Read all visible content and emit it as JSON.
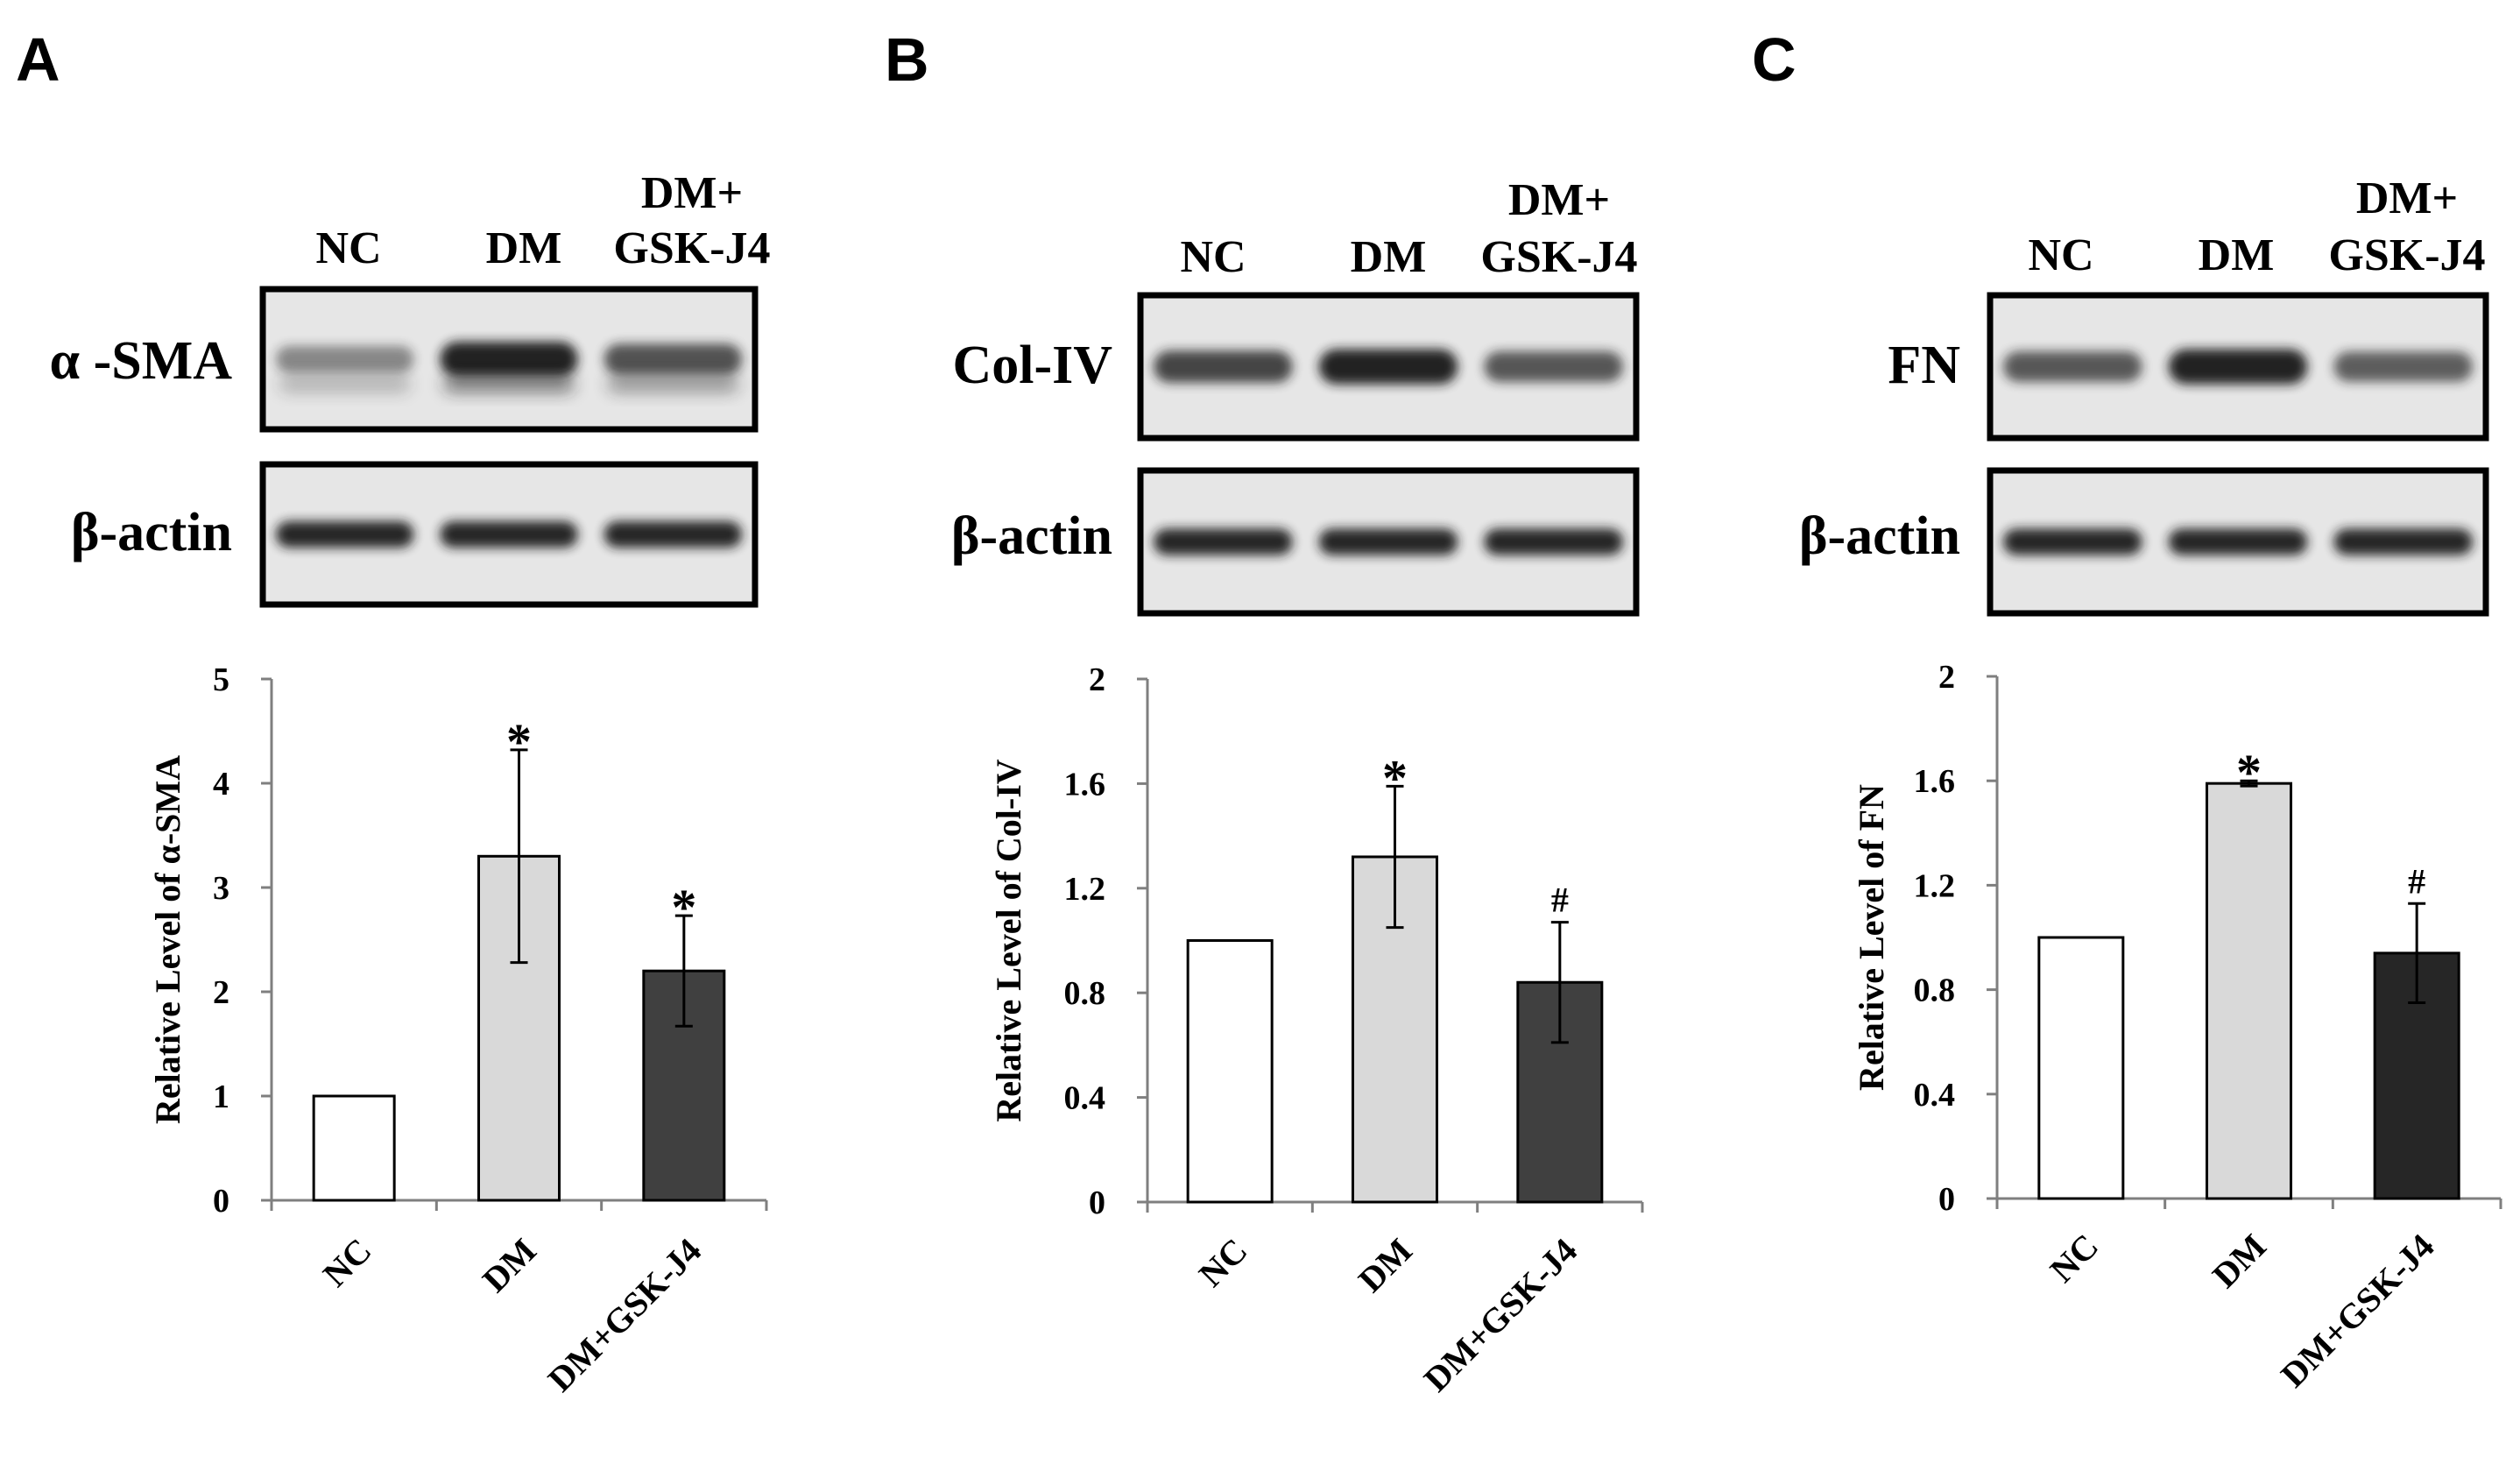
{
  "colors": {
    "nc": "#ffffff",
    "dm": "#d9d9d9",
    "dm_gsk": "#404040",
    "dm_gsk_c": "#262626",
    "blot_bg": "#e6e6e6",
    "band": "#1e1e1e"
  },
  "chart_data": [
    {
      "panel": "A",
      "type": "bar",
      "blot_lanes": [
        "NC",
        "DM",
        "DM+\nGSK-J4"
      ],
      "blot_rows": [
        "α -SMA",
        "β-actin"
      ],
      "categories": [
        "NC",
        "DM",
        "DM+GSK-J4"
      ],
      "values": [
        1.0,
        3.3,
        2.2
      ],
      "errors": [
        0,
        1.02,
        0.53
      ],
      "annotations": [
        "",
        "*",
        "*"
      ],
      "ylabel": "Relative Level of α-SMA",
      "ylim": [
        0,
        5
      ],
      "yticks": [
        "0",
        "1",
        "2",
        "3",
        "4",
        "5"
      ],
      "ytick_values": [
        0,
        1,
        2,
        3,
        4,
        5
      ]
    },
    {
      "panel": "B",
      "type": "bar",
      "blot_lanes": [
        "NC",
        "DM",
        "DM+\nGSK-J4"
      ],
      "blot_rows": [
        "Col-IV",
        "β-actin"
      ],
      "categories": [
        "NC",
        "DM",
        "DM+GSK-J4"
      ],
      "values": [
        1.0,
        1.32,
        0.84
      ],
      "errors": [
        0,
        0.27,
        0.23
      ],
      "annotations": [
        "",
        "*",
        "#"
      ],
      "ylabel": "Relative Level of Col-IV",
      "ylim": [
        0,
        2
      ],
      "yticks": [
        "0",
        "0.4",
        "0.8",
        "1.2",
        "1.6",
        "2"
      ],
      "ytick_values": [
        0,
        0.4,
        0.8,
        1.2,
        1.6,
        2
      ]
    },
    {
      "panel": "C",
      "type": "bar",
      "blot_lanes": [
        "NC",
        "DM",
        "DM+\nGSK-J4"
      ],
      "blot_rows": [
        "FN",
        "β-actin"
      ],
      "categories": [
        "NC",
        "DM",
        "DM+GSK-J4"
      ],
      "values": [
        1.0,
        1.59,
        0.94
      ],
      "errors": [
        0,
        0.01,
        0.19
      ],
      "annotations": [
        "",
        "*",
        "#"
      ],
      "ylabel": "Relative Level of FN",
      "ylim": [
        0,
        2
      ],
      "yticks": [
        "0",
        "0.4",
        "0.8",
        "1.2",
        "1.6",
        "2"
      ],
      "ytick_values": [
        0,
        0.4,
        0.8,
        1.2,
        1.6,
        2
      ]
    }
  ]
}
